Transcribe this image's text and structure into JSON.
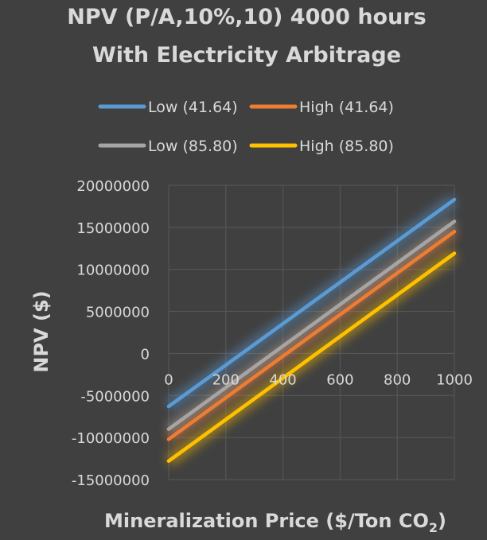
{
  "chart_data": {
    "type": "line",
    "title": [
      "NPV (P/A,10%,10) 4000 hours",
      "With Electricity Arbitrage"
    ],
    "xlabel": "Mineralization Price ($/Ton CO",
    "xlabel_subscript": "2",
    "xlabel_close": ")",
    "ylabel": "NPV ($)",
    "xlim": [
      0,
      1000
    ],
    "ylim": [
      -15000000,
      20000000
    ],
    "x_ticks": [
      0,
      200,
      400,
      600,
      800,
      1000
    ],
    "x_tick_labels": [
      "0",
      "200",
      "400",
      "600",
      "800",
      "1000"
    ],
    "y_ticks": [
      20000000,
      15000000,
      10000000,
      5000000,
      0,
      -5000000,
      -10000000,
      -15000000
    ],
    "y_tick_labels": [
      "20000000",
      "15000000",
      "10000000",
      "5000000",
      "0",
      "-5000000",
      "-10000000",
      "-15000000"
    ],
    "grid": true,
    "legend_position": "top",
    "series": [
      {
        "name": "Low (41.64)",
        "color": "#5b9bd5",
        "x": [
          0,
          1000
        ],
        "y": [
          -6300000,
          18300000
        ]
      },
      {
        "name": "High (41.64)",
        "color": "#ed7d31",
        "x": [
          0,
          1000
        ],
        "y": [
          -10200000,
          14500000
        ]
      },
      {
        "name": "Low (85.80)",
        "color": "#a5a5a5",
        "x": [
          0,
          1000
        ],
        "y": [
          -9000000,
          15700000
        ]
      },
      {
        "name": "High (85.80)",
        "color": "#ffc000",
        "x": [
          0,
          1000
        ],
        "y": [
          -12800000,
          11900000
        ]
      }
    ]
  }
}
